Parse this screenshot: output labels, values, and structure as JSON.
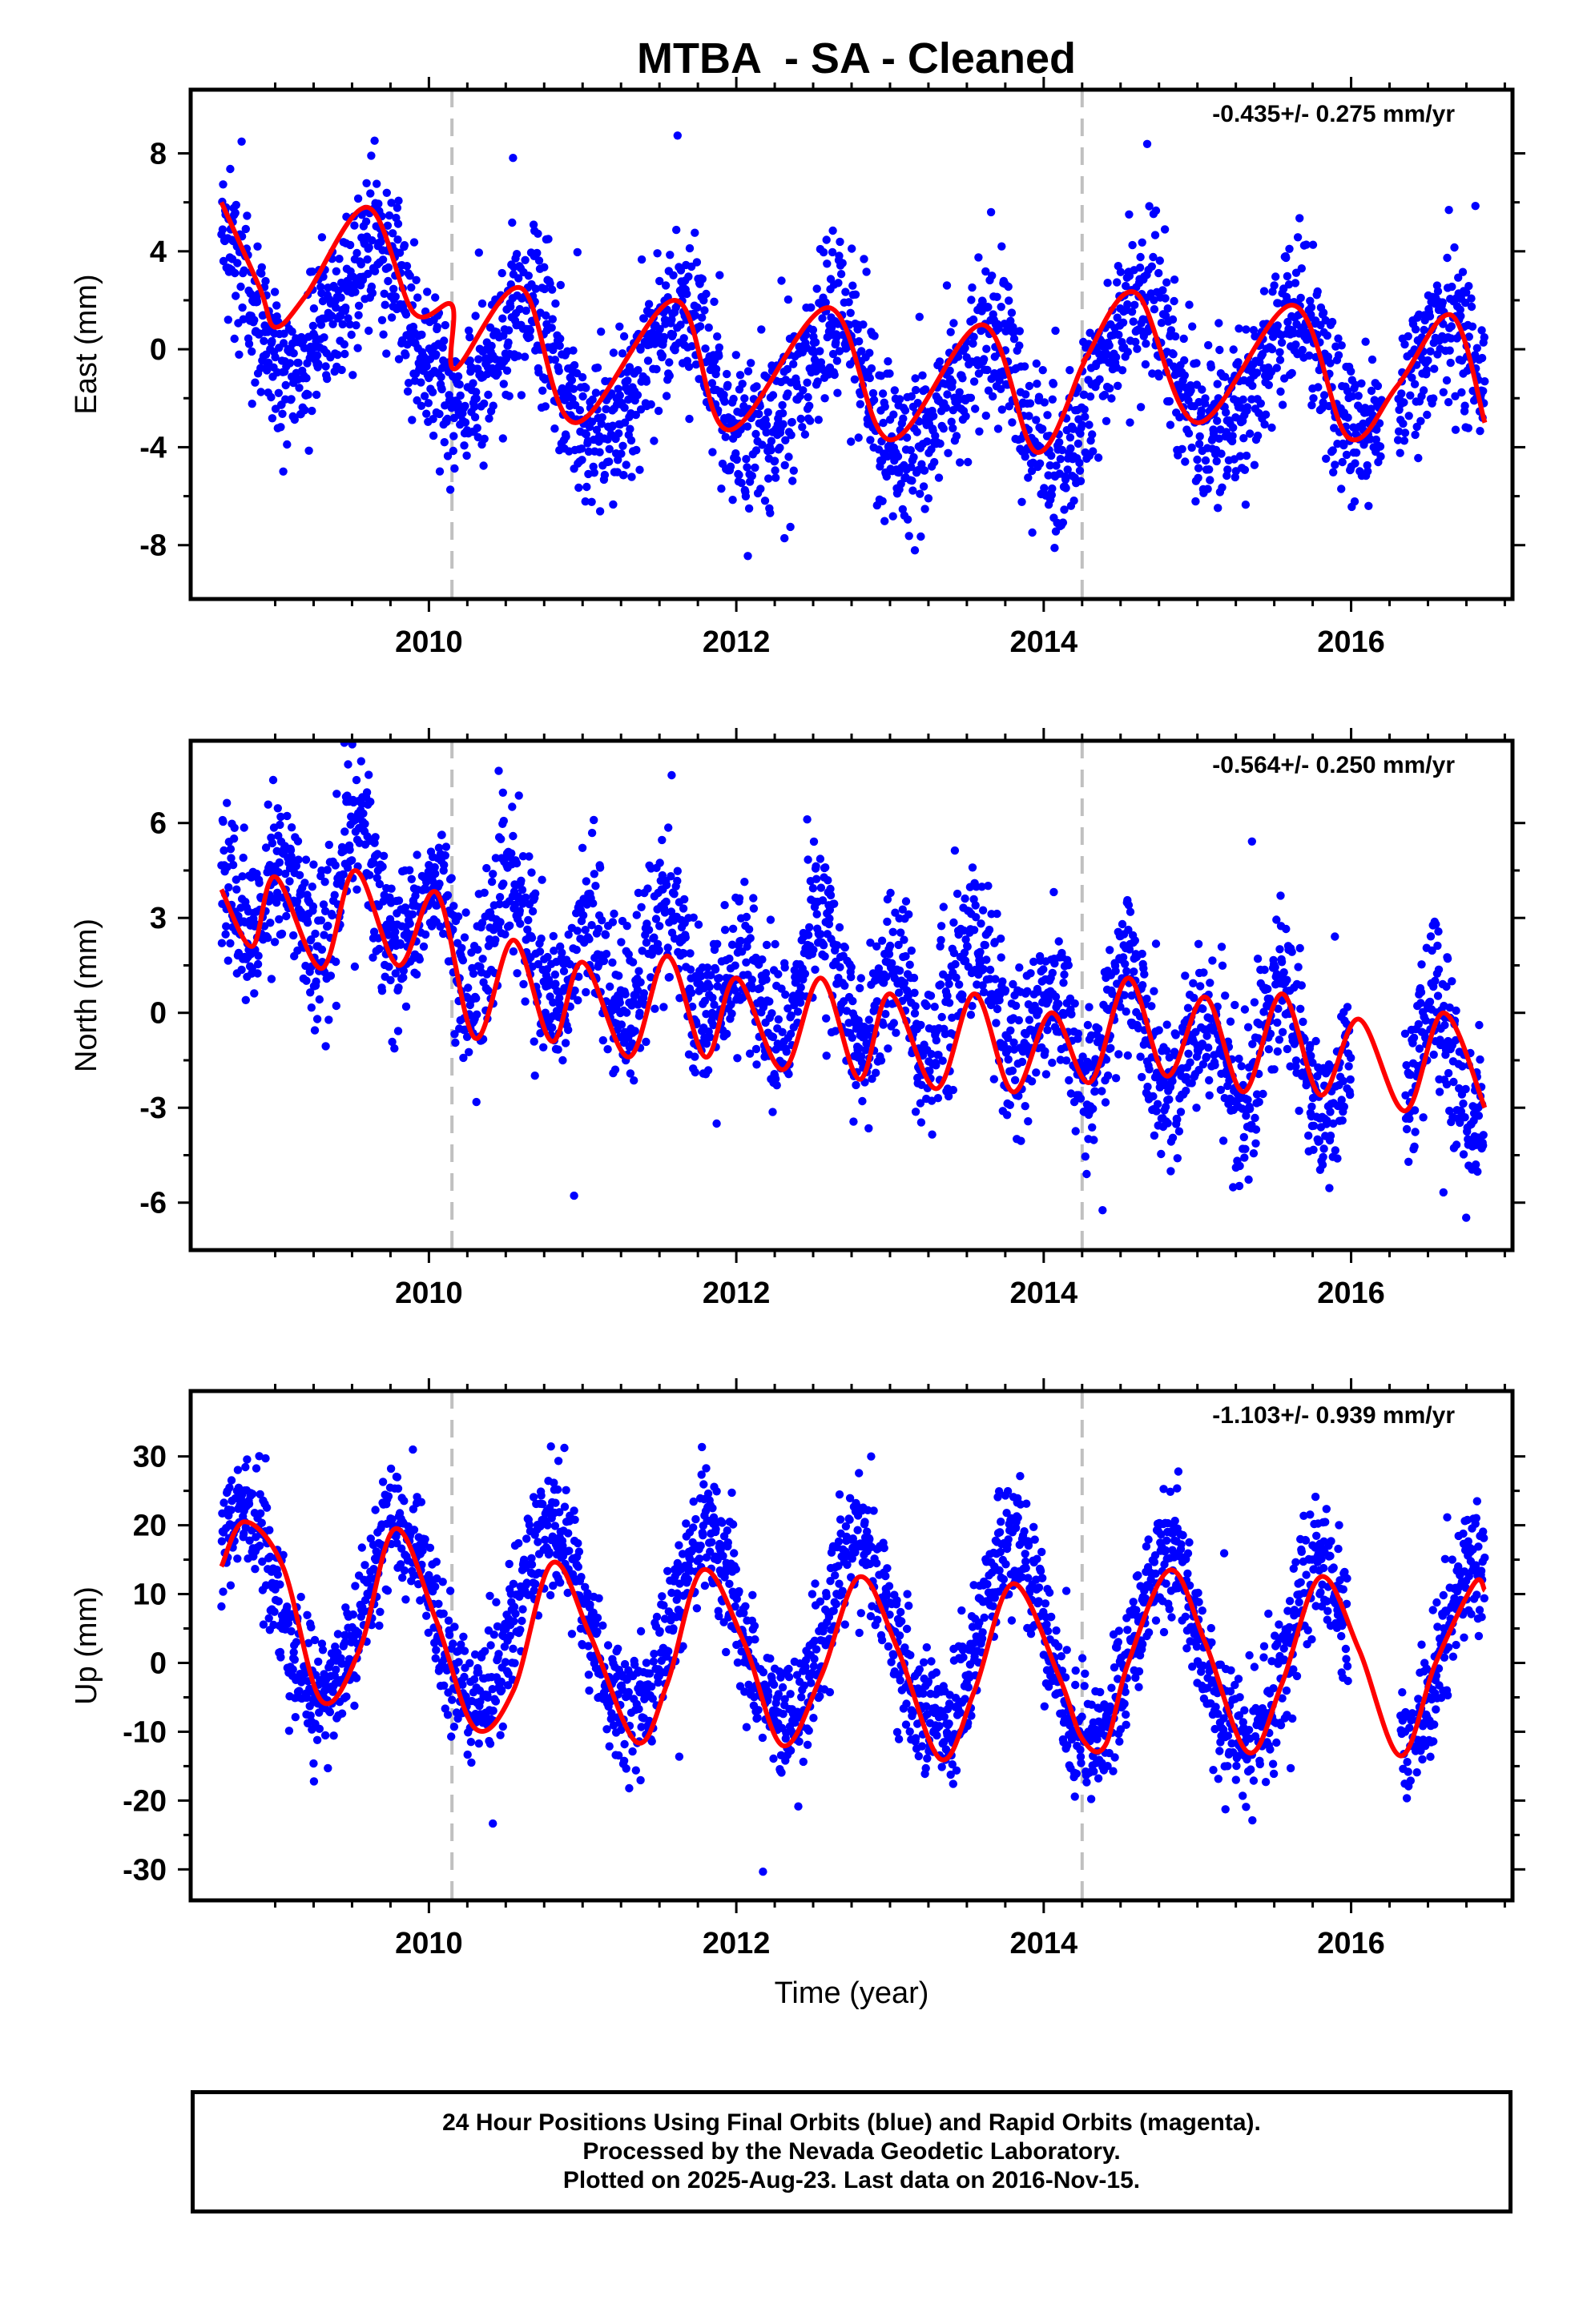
{
  "title": "MTBA  - SA - Cleaned",
  "footer": {
    "line1": "24 Hour Positions Using Final Orbits (blue) and Rapid Orbits (magenta).",
    "line2": "Processed by the Nevada Geodetic Laboratory.",
    "line3": "Plotted on 2025-Aug-23. Last data on 2016-Nov-15."
  },
  "colors": {
    "points": "#0000ff",
    "fit": "#ff0000",
    "breaks": "#c0c0c0"
  },
  "chart_data": [
    {
      "type": "scatter",
      "component": "east",
      "ylabel": "East (mm)",
      "xlabel": "",
      "rate_text": "-0.435+/- 0.275 mm/yr",
      "xlim": [
        2008.45,
        2017.05
      ],
      "ylim": [
        -10.2,
        10.6
      ],
      "yticks": [
        -8,
        -4,
        0,
        4,
        8
      ],
      "xticks": [
        2010,
        2012,
        2014,
        2016
      ],
      "breaks": [
        2010.15,
        2014.25
      ],
      "data_span": [
        2008.65,
        2016.87
      ],
      "gaps": [
        [
          2016.2,
          2016.3
        ]
      ],
      "model": {
        "mean": 0.3,
        "trend": -0.435,
        "ref_year": 2012.5,
        "annual_amp": 2.6,
        "annual_peak": 0.62,
        "semi_amp": 0.4,
        "semi_peak": 0.2,
        "offsets": [
          [
            2010.15,
            -1.9
          ],
          [
            2014.25,
            1.9
          ]
        ]
      },
      "scatter_sigma": 1.6,
      "fit_curve": [
        [
          2008.65,
          6.0
        ],
        [
          2008.9,
          2.5
        ],
        [
          2009.0,
          0.9
        ],
        [
          2009.2,
          2.2
        ],
        [
          2009.6,
          5.8
        ],
        [
          2009.9,
          1.5
        ],
        [
          2010.15,
          1.8
        ],
        [
          2010.17,
          -0.8
        ],
        [
          2010.6,
          2.5
        ],
        [
          2010.95,
          -3.0
        ],
        [
          2011.6,
          2.0
        ],
        [
          2011.95,
          -3.3
        ],
        [
          2012.6,
          1.7
        ],
        [
          2013.0,
          -3.7
        ],
        [
          2013.6,
          1.0
        ],
        [
          2013.95,
          -4.2
        ],
        [
          2014.25,
          -0.7
        ],
        [
          2014.28,
          -0.3
        ],
        [
          2014.6,
          2.3
        ],
        [
          2015.0,
          -3.0
        ],
        [
          2015.62,
          1.8
        ],
        [
          2015.98,
          -3.6
        ],
        [
          2016.3,
          -1.5
        ],
        [
          2016.65,
          1.4
        ],
        [
          2016.87,
          -3.0
        ]
      ]
    },
    {
      "type": "scatter",
      "component": "north",
      "ylabel": "North (mm)",
      "xlabel": "",
      "rate_text": "-0.564+/- 0.250 mm/yr",
      "xlim": [
        2008.45,
        2017.05
      ],
      "ylim": [
        -7.5,
        8.6
      ],
      "yticks": [
        -6,
        -3,
        0,
        3,
        6
      ],
      "xticks": [
        2010,
        2012,
        2014,
        2016
      ],
      "breaks": [
        2010.15,
        2014.25
      ],
      "data_span": [
        2008.65,
        2016.87
      ],
      "gaps": [
        [
          2016.0,
          2016.35
        ]
      ],
      "model": {
        "mean": 0.3,
        "trend": -0.564,
        "ref_year": 2012.5,
        "annual_amp": 0.7,
        "annual_peak": 0.55,
        "semi_amp": 1.6,
        "semi_peak": 0.04,
        "offsets": [
          [
            2010.15,
            -1.2
          ],
          [
            2014.25,
            -0.5
          ]
        ]
      },
      "scatter_sigma": 1.2,
      "fit_curve": [
        [
          2008.65,
          3.9
        ],
        [
          2008.85,
          2.1
        ],
        [
          2009.0,
          4.3
        ],
        [
          2009.3,
          1.4
        ],
        [
          2009.52,
          4.5
        ],
        [
          2009.8,
          1.5
        ],
        [
          2010.05,
          3.8
        ],
        [
          2010.3,
          -0.8
        ],
        [
          2010.55,
          2.3
        ],
        [
          2010.8,
          -0.9
        ],
        [
          2011.0,
          1.6
        ],
        [
          2011.3,
          -1.4
        ],
        [
          2011.55,
          1.8
        ],
        [
          2011.8,
          -1.4
        ],
        [
          2012.0,
          1.1
        ],
        [
          2012.3,
          -1.8
        ],
        [
          2012.55,
          1.1
        ],
        [
          2012.8,
          -2.1
        ],
        [
          2013.0,
          0.6
        ],
        [
          2013.3,
          -2.4
        ],
        [
          2013.55,
          0.6
        ],
        [
          2013.8,
          -2.5
        ],
        [
          2014.05,
          0.0
        ],
        [
          2014.3,
          -2.2
        ],
        [
          2014.55,
          1.1
        ],
        [
          2014.8,
          -2.0
        ],
        [
          2015.05,
          0.5
        ],
        [
          2015.3,
          -2.5
        ],
        [
          2015.55,
          0.6
        ],
        [
          2015.8,
          -2.6
        ],
        [
          2016.05,
          -0.2
        ],
        [
          2016.35,
          -3.1
        ],
        [
          2016.6,
          0.0
        ],
        [
          2016.87,
          -3.0
        ]
      ]
    },
    {
      "type": "scatter",
      "component": "up",
      "ylabel": "Up (mm)",
      "xlabel": "Time (year)",
      "rate_text": "-1.103+/- 0.939 mm/yr",
      "xlim": [
        2008.45,
        2017.05
      ],
      "ylim": [
        -34.5,
        39.5
      ],
      "yticks": [
        -30,
        -20,
        -10,
        0,
        10,
        20,
        30
      ],
      "xticks": [
        2010,
        2012,
        2014,
        2016
      ],
      "breaks": [
        2010.15,
        2014.25
      ],
      "data_span": [
        2008.65,
        2016.87
      ],
      "gaps": [
        [
          2015.98,
          2016.32
        ]
      ],
      "model": {
        "mean": 4.0,
        "trend": -1.103,
        "ref_year": 2012.5,
        "annual_amp": 13.5,
        "annual_peak": 0.8,
        "semi_amp": 1.0,
        "semi_peak": 0.3,
        "offsets": []
      },
      "scatter_sigma": 4.5,
      "fit_curve": [
        [
          2008.65,
          14
        ],
        [
          2008.8,
          20.5
        ],
        [
          2009.05,
          14
        ],
        [
          2009.3,
          -5.5
        ],
        [
          2009.55,
          2
        ],
        [
          2009.78,
          19.5
        ],
        [
          2010.05,
          6
        ],
        [
          2010.3,
          -9.5
        ],
        [
          2010.55,
          -4
        ],
        [
          2010.8,
          14.5
        ],
        [
          2011.05,
          4
        ],
        [
          2011.35,
          -11.5
        ],
        [
          2011.55,
          -3
        ],
        [
          2011.78,
          13.5
        ],
        [
          2012.05,
          3
        ],
        [
          2012.3,
          -12
        ],
        [
          2012.55,
          -2
        ],
        [
          2012.8,
          12.5
        ],
        [
          2013.05,
          2
        ],
        [
          2013.33,
          -14
        ],
        [
          2013.55,
          -4
        ],
        [
          2013.8,
          11.5
        ],
        [
          2014.1,
          -2
        ],
        [
          2014.25,
          -11
        ],
        [
          2014.4,
          -12
        ],
        [
          2014.55,
          0
        ],
        [
          2014.82,
          13.5
        ],
        [
          2015.05,
          3
        ],
        [
          2015.33,
          -13
        ],
        [
          2015.55,
          -3
        ],
        [
          2015.8,
          12.5
        ],
        [
          2016.05,
          2
        ],
        [
          2016.32,
          -13.5
        ],
        [
          2016.55,
          0
        ],
        [
          2016.8,
          11.5
        ],
        [
          2016.87,
          10.5
        ]
      ]
    }
  ]
}
